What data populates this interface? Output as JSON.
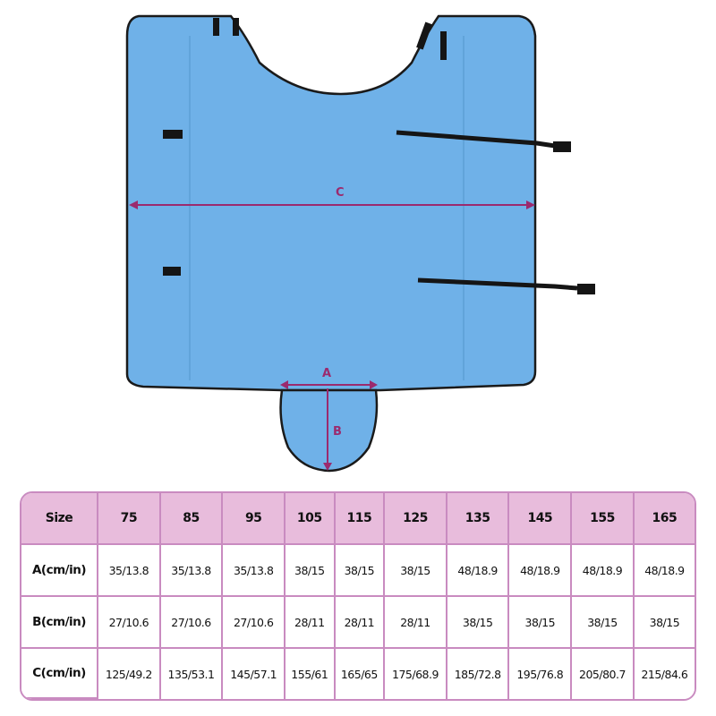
{
  "diagram": {
    "labels": {
      "c": "C",
      "a": "A",
      "b": "B"
    },
    "colors": {
      "fabric": "#6fb1e8",
      "edge": "#1a1a1a",
      "dimension": "#9b2a6e",
      "strap": "#151515"
    }
  },
  "size_table": {
    "header_label": "Size",
    "sizes": [
      "75",
      "85",
      "95",
      "105",
      "115",
      "125",
      "135",
      "145",
      "155",
      "165"
    ],
    "rows": [
      {
        "label": "A(cm/in)",
        "values": [
          "35/13.8",
          "35/13.8",
          "35/13.8",
          "38/15",
          "38/15",
          "38/15",
          "48/18.9",
          "48/18.9",
          "48/18.9",
          "48/18.9"
        ]
      },
      {
        "label": "B(cm/in)",
        "values": [
          "27/10.6",
          "27/10.6",
          "27/10.6",
          "28/11",
          "28/11",
          "28/11",
          "38/15",
          "38/15",
          "38/15",
          "38/15"
        ]
      },
      {
        "label": "C(cm/in)",
        "values": [
          "125/49.2",
          "135/53.1",
          "145/57.1",
          "155/61",
          "165/65",
          "175/68.9",
          "185/72.8",
          "195/76.8",
          "205/80.7",
          "215/84.6"
        ]
      }
    ],
    "colors": {
      "header_bg": "#e8bcdc",
      "border": "#c98bc0"
    }
  }
}
